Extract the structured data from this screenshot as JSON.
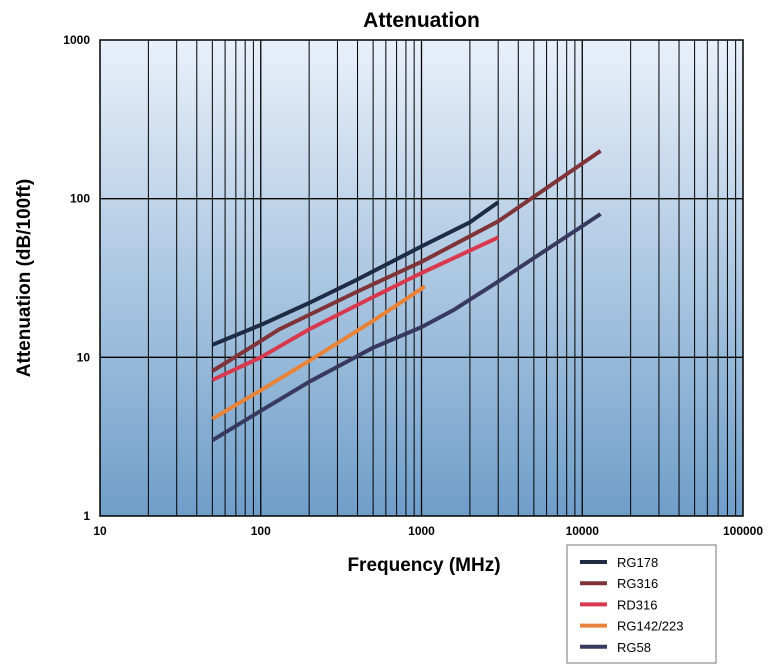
{
  "chart_data": {
    "type": "line",
    "title": "Attenuation",
    "xlabel": "Frequency (MHz)",
    "ylabel": "Attenuation (dB/100ft)",
    "x_scale": "log",
    "y_scale": "log",
    "xlim": [
      10,
      100000
    ],
    "ylim": [
      1,
      1000
    ],
    "x_ticks": [
      "10",
      "100",
      "1000",
      "10000",
      "100000"
    ],
    "y_ticks": [
      "1",
      "10",
      "100",
      "1000"
    ],
    "grid": true,
    "legend_position": "bottom-right",
    "series": [
      {
        "name": "RG178",
        "color": "#1e2b44",
        "points": [
          [
            50,
            12
          ],
          [
            100,
            16
          ],
          [
            200,
            22
          ],
          [
            400,
            31
          ],
          [
            1000,
            50
          ],
          [
            2000,
            71
          ],
          [
            3000,
            95
          ]
        ]
      },
      {
        "name": "RG316",
        "color": "#7e3438",
        "points": [
          [
            50,
            8.2
          ],
          [
            80,
            11
          ],
          [
            130,
            15
          ],
          [
            400,
            26
          ],
          [
            1000,
            40
          ],
          [
            3000,
            72
          ],
          [
            13000,
            200
          ]
        ]
      },
      {
        "name": "RD316",
        "color": "#d8394f",
        "points": [
          [
            50,
            7.2
          ],
          [
            100,
            10
          ],
          [
            200,
            15
          ],
          [
            500,
            24
          ],
          [
            1000,
            34
          ],
          [
            3000,
            57
          ]
        ]
      },
      {
        "name": "RG142/223",
        "color": "#e8843a",
        "points": [
          [
            50,
            4.1
          ],
          [
            100,
            6.2
          ],
          [
            200,
            9.5
          ],
          [
            500,
            17
          ],
          [
            1050,
            28
          ]
        ]
      },
      {
        "name": "RG58",
        "color": "#373a5e",
        "points": [
          [
            50,
            3
          ],
          [
            100,
            4.6
          ],
          [
            200,
            7
          ],
          [
            500,
            11.5
          ],
          [
            1000,
            15.5
          ],
          [
            1600,
            20
          ],
          [
            3000,
            30
          ],
          [
            13000,
            80
          ]
        ]
      }
    ]
  }
}
